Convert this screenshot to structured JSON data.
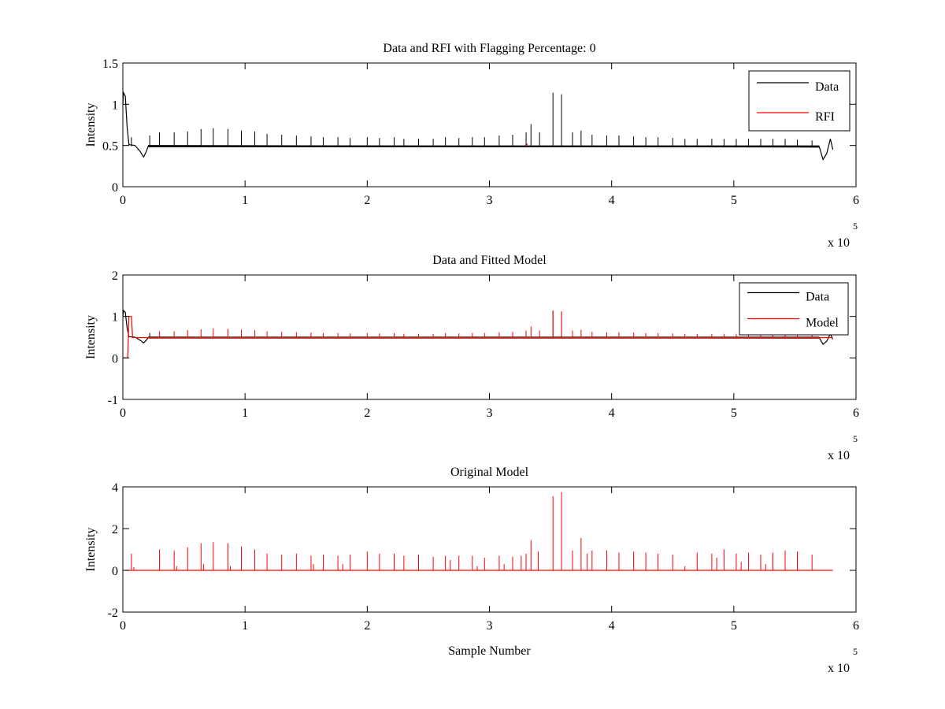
{
  "chart_data": [
    {
      "type": "line",
      "title": "Data and RFI with Flagging Percentage: 0",
      "xlabel": "",
      "ylabel": "Intensity",
      "xlim": [
        0,
        6
      ],
      "ylim": [
        0,
        1.5
      ],
      "x_ticks": [
        "0",
        "1",
        "2",
        "3",
        "4",
        "5",
        "6"
      ],
      "y_ticks": [
        "0",
        "0.5",
        "1",
        "1.5"
      ],
      "x_multiplier": {
        "base": "x 10",
        "power": "5"
      },
      "legend": "top-right",
      "series": [
        {
          "name": "Data",
          "color": "#000000",
          "baseline": 0.49,
          "points": [
            [
              0.0,
              1.0
            ],
            [
              0.005,
              1.14
            ],
            [
              0.02,
              1.1
            ],
            [
              0.035,
              0.72
            ],
            [
              0.05,
              0.51
            ],
            [
              0.1,
              0.5
            ],
            [
              0.14,
              0.43
            ],
            [
              0.17,
              0.36
            ],
            [
              0.19,
              0.42
            ],
            [
              0.21,
              0.5
            ],
            [
              5.7,
              0.48
            ],
            [
              5.73,
              0.33
            ],
            [
              5.76,
              0.4
            ],
            [
              5.79,
              0.58
            ],
            [
              5.81,
              0.45
            ]
          ],
          "spikes": [
            [
              0.07,
              0.6
            ],
            [
              0.22,
              0.62
            ],
            [
              0.3,
              0.66
            ],
            [
              0.42,
              0.66
            ],
            [
              0.53,
              0.67
            ],
            [
              0.64,
              0.7
            ],
            [
              0.74,
              0.71
            ],
            [
              0.86,
              0.7
            ],
            [
              0.97,
              0.68
            ],
            [
              1.08,
              0.67
            ],
            [
              1.18,
              0.64
            ],
            [
              1.3,
              0.63
            ],
            [
              1.42,
              0.62
            ],
            [
              1.54,
              0.61
            ],
            [
              1.64,
              0.6
            ],
            [
              1.76,
              0.6
            ],
            [
              1.86,
              0.59
            ],
            [
              2.0,
              0.6
            ],
            [
              2.1,
              0.59
            ],
            [
              2.22,
              0.6
            ],
            [
              2.3,
              0.58
            ],
            [
              2.42,
              0.58
            ],
            [
              2.54,
              0.58
            ],
            [
              2.64,
              0.6
            ],
            [
              2.75,
              0.59
            ],
            [
              2.86,
              0.6
            ],
            [
              2.96,
              0.6
            ],
            [
              3.08,
              0.62
            ],
            [
              3.19,
              0.63
            ],
            [
              3.3,
              0.66
            ],
            [
              3.34,
              0.76
            ],
            [
              3.41,
              0.66
            ],
            [
              3.52,
              1.14
            ],
            [
              3.59,
              1.12
            ],
            [
              3.68,
              0.66
            ],
            [
              3.75,
              0.68
            ],
            [
              3.84,
              0.63
            ],
            [
              3.96,
              0.62
            ],
            [
              4.06,
              0.62
            ],
            [
              4.18,
              0.61
            ],
            [
              4.28,
              0.6
            ],
            [
              4.38,
              0.6
            ],
            [
              4.5,
              0.59
            ],
            [
              4.6,
              0.58
            ],
            [
              4.7,
              0.58
            ],
            [
              4.82,
              0.58
            ],
            [
              4.92,
              0.58
            ],
            [
              5.02,
              0.58
            ],
            [
              5.12,
              0.58
            ],
            [
              5.22,
              0.58
            ],
            [
              5.32,
              0.58
            ],
            [
              5.42,
              0.58
            ],
            [
              5.52,
              0.57
            ],
            [
              5.64,
              0.56
            ]
          ]
        },
        {
          "name": "RFI",
          "color": "#ff0000",
          "points": [
            [
              3.3,
              0.49
            ],
            [
              3.31,
              0.52
            ]
          ]
        }
      ]
    },
    {
      "type": "line",
      "title": "Data and Fitted Model",
      "xlabel": "",
      "ylabel": "Intensity",
      "xlim": [
        0,
        6
      ],
      "ylim": [
        -1,
        2
      ],
      "x_ticks": [
        "0",
        "1",
        "2",
        "3",
        "4",
        "5",
        "6"
      ],
      "y_ticks": [
        "-1",
        "0",
        "1",
        "2"
      ],
      "x_multiplier": {
        "base": "x 10",
        "power": "5"
      },
      "legend": "top-right",
      "series": [
        {
          "name": "Data",
          "color": "#000000",
          "baseline": 0.49,
          "points": [
            [
              0.0,
              1.0
            ],
            [
              0.005,
              1.14
            ],
            [
              0.02,
              1.1
            ],
            [
              0.035,
              0.72
            ],
            [
              0.05,
              0.51
            ],
            [
              0.1,
              0.5
            ],
            [
              0.14,
              0.43
            ],
            [
              0.17,
              0.36
            ],
            [
              0.19,
              0.42
            ],
            [
              0.21,
              0.5
            ],
            [
              5.7,
              0.48
            ],
            [
              5.73,
              0.33
            ],
            [
              5.76,
              0.4
            ],
            [
              5.79,
              0.58
            ],
            [
              5.81,
              0.45
            ]
          ],
          "spikes": [
            [
              0.22,
              0.6
            ],
            [
              3.52,
              1.14
            ],
            [
              3.59,
              1.12
            ]
          ]
        },
        {
          "name": "Model",
          "color": "#ff0000",
          "baseline": 0.49,
          "points": [
            [
              0.0,
              0.0
            ],
            [
              0.04,
              0.0
            ],
            [
              0.05,
              1.0
            ],
            [
              0.07,
              1.0
            ],
            [
              0.08,
              0.49
            ],
            [
              5.81,
              0.49
            ]
          ],
          "spikes": [
            [
              0.3,
              0.64
            ],
            [
              0.42,
              0.64
            ],
            [
              0.53,
              0.67
            ],
            [
              0.64,
              0.69
            ],
            [
              0.74,
              0.71
            ],
            [
              0.86,
              0.7
            ],
            [
              0.97,
              0.68
            ],
            [
              1.08,
              0.67
            ],
            [
              1.18,
              0.64
            ],
            [
              1.3,
              0.63
            ],
            [
              1.42,
              0.62
            ],
            [
              1.54,
              0.61
            ],
            [
              1.64,
              0.6
            ],
            [
              1.76,
              0.6
            ],
            [
              1.86,
              0.59
            ],
            [
              2.0,
              0.6
            ],
            [
              2.1,
              0.59
            ],
            [
              2.22,
              0.6
            ],
            [
              2.3,
              0.58
            ],
            [
              2.42,
              0.58
            ],
            [
              2.54,
              0.58
            ],
            [
              2.64,
              0.6
            ],
            [
              2.75,
              0.59
            ],
            [
              2.86,
              0.6
            ],
            [
              2.96,
              0.6
            ],
            [
              3.08,
              0.62
            ],
            [
              3.19,
              0.63
            ],
            [
              3.3,
              0.66
            ],
            [
              3.34,
              0.76
            ],
            [
              3.41,
              0.66
            ],
            [
              3.52,
              1.14
            ],
            [
              3.59,
              1.12
            ],
            [
              3.68,
              0.66
            ],
            [
              3.75,
              0.68
            ],
            [
              3.84,
              0.63
            ],
            [
              3.96,
              0.62
            ],
            [
              4.06,
              0.62
            ],
            [
              4.18,
              0.61
            ],
            [
              4.28,
              0.6
            ],
            [
              4.38,
              0.6
            ],
            [
              4.5,
              0.59
            ],
            [
              4.6,
              0.58
            ],
            [
              4.7,
              0.58
            ],
            [
              4.82,
              0.58
            ],
            [
              4.92,
              0.58
            ],
            [
              5.02,
              0.58
            ],
            [
              5.12,
              0.58
            ],
            [
              5.22,
              0.58
            ],
            [
              5.32,
              0.58
            ],
            [
              5.42,
              0.58
            ],
            [
              5.52,
              0.57
            ],
            [
              5.64,
              0.56
            ]
          ]
        }
      ]
    },
    {
      "type": "line",
      "title": "Original Model",
      "xlabel": "Sample Number",
      "ylabel": "Intensity",
      "xlim": [
        0,
        6
      ],
      "ylim": [
        -2,
        4
      ],
      "x_ticks": [
        "0",
        "1",
        "2",
        "3",
        "4",
        "5",
        "6"
      ],
      "y_ticks": [
        "-2",
        "0",
        "2",
        "4"
      ],
      "x_multiplier": {
        "base": "x 10",
        "power": "5"
      },
      "legend": "none",
      "series": [
        {
          "name": "",
          "color": "#ff0000",
          "baseline": 0,
          "points": [
            [
              0.02,
              0.0
            ],
            [
              5.81,
              0.0
            ]
          ],
          "spikes": [
            [
              0.07,
              0.8
            ],
            [
              0.09,
              0.15
            ],
            [
              0.3,
              1.0
            ],
            [
              0.42,
              0.95
            ],
            [
              0.44,
              0.2
            ],
            [
              0.53,
              1.1
            ],
            [
              0.64,
              1.3
            ],
            [
              0.66,
              0.3
            ],
            [
              0.74,
              1.35
            ],
            [
              0.86,
              1.3
            ],
            [
              0.88,
              0.2
            ],
            [
              0.97,
              1.15
            ],
            [
              1.08,
              1.0
            ],
            [
              1.18,
              0.8
            ],
            [
              1.3,
              0.75
            ],
            [
              1.42,
              0.8
            ],
            [
              1.54,
              0.7
            ],
            [
              1.56,
              0.3
            ],
            [
              1.64,
              0.75
            ],
            [
              1.76,
              0.7
            ],
            [
              1.8,
              0.3
            ],
            [
              1.86,
              0.75
            ],
            [
              2.0,
              0.9
            ],
            [
              2.1,
              0.8
            ],
            [
              2.22,
              0.8
            ],
            [
              2.3,
              0.7
            ],
            [
              2.42,
              0.75
            ],
            [
              2.54,
              0.65
            ],
            [
              2.64,
              0.7
            ],
            [
              2.68,
              0.5
            ],
            [
              2.75,
              0.7
            ],
            [
              2.86,
              0.7
            ],
            [
              2.9,
              0.2
            ],
            [
              2.96,
              0.6
            ],
            [
              3.08,
              0.7
            ],
            [
              3.12,
              0.3
            ],
            [
              3.19,
              0.65
            ],
            [
              3.26,
              0.7
            ],
            [
              3.3,
              0.8
            ],
            [
              3.34,
              1.45
            ],
            [
              3.4,
              0.9
            ],
            [
              3.52,
              3.55
            ],
            [
              3.59,
              3.75
            ],
            [
              3.68,
              0.95
            ],
            [
              3.75,
              1.55
            ],
            [
              3.8,
              0.8
            ],
            [
              3.84,
              0.95
            ],
            [
              3.96,
              0.95
            ],
            [
              4.06,
              0.85
            ],
            [
              4.18,
              0.9
            ],
            [
              4.28,
              0.85
            ],
            [
              4.38,
              0.8
            ],
            [
              4.5,
              0.75
            ],
            [
              4.6,
              0.2
            ],
            [
              4.7,
              0.85
            ],
            [
              4.82,
              0.8
            ],
            [
              4.86,
              0.6
            ],
            [
              4.92,
              1.0
            ],
            [
              5.02,
              0.8
            ],
            [
              5.06,
              0.4
            ],
            [
              5.12,
              0.85
            ],
            [
              5.22,
              0.75
            ],
            [
              5.26,
              0.3
            ],
            [
              5.32,
              0.85
            ],
            [
              5.42,
              0.95
            ],
            [
              5.52,
              0.9
            ],
            [
              5.64,
              0.75
            ]
          ]
        }
      ]
    }
  ]
}
